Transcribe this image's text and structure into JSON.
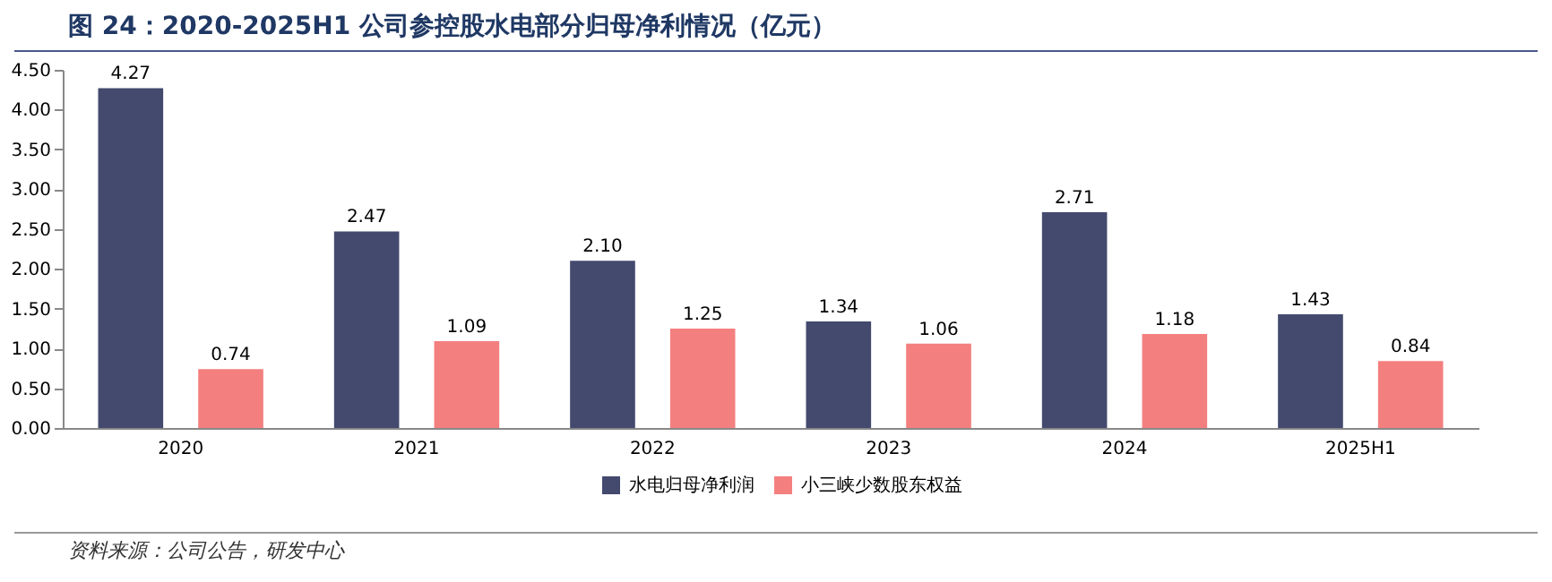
{
  "chart_data": {
    "type": "bar",
    "title": "图 24：2020-2025H1 公司参控股水电部分归母净利情况（亿元）",
    "categories": [
      "2020",
      "2021",
      "2022",
      "2023",
      "2024",
      "2025H1"
    ],
    "series": [
      {
        "name": "水电归母净利润",
        "color": "#434a6e",
        "values": [
          4.27,
          2.47,
          2.1,
          1.34,
          2.71,
          1.43
        ],
        "value_labels": [
          "4.27",
          "2.47",
          "2.10",
          "1.34",
          "2.71",
          "1.43"
        ]
      },
      {
        "name": "小三峡少数股东权益",
        "color": "#f47f7f",
        "values": [
          0.74,
          1.09,
          1.25,
          1.06,
          1.18,
          0.84
        ],
        "value_labels": [
          "0.74",
          "1.09",
          "1.25",
          "1.06",
          "1.18",
          "0.84"
        ]
      }
    ],
    "ylim": [
      0,
      4.5
    ],
    "yticks": [
      {
        "value": 0,
        "label": "0.00"
      },
      {
        "value": 0.5,
        "label": "0.50"
      },
      {
        "value": 1,
        "label": "1.00"
      },
      {
        "value": 1.5,
        "label": "1.50"
      },
      {
        "value": 2,
        "label": "2.00"
      },
      {
        "value": 2.5,
        "label": "2.50"
      },
      {
        "value": 3,
        "label": "3.00"
      },
      {
        "value": 3.5,
        "label": "3.50"
      },
      {
        "value": 4,
        "label": "4.00"
      },
      {
        "value": 4.5,
        "label": "4.50"
      }
    ],
    "grid": false,
    "legend": "bottom",
    "annotations": [
      "资料来源：公司公告，研发中心"
    ]
  }
}
